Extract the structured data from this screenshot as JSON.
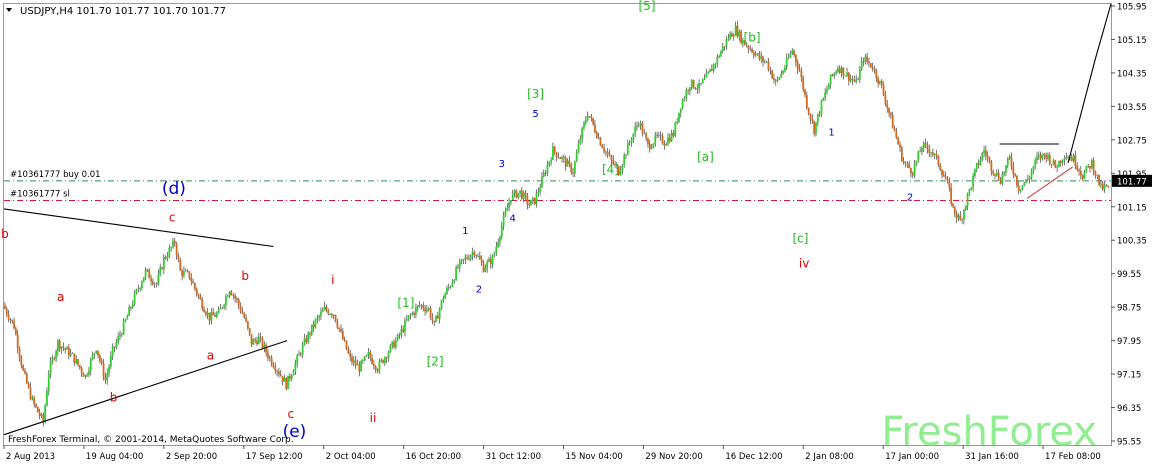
{
  "chart_data": {
    "type": "candlestick",
    "title": "USDJPY,H4  101.70 101.77 101.70 101.77",
    "symbol": "USDJPY",
    "timeframe": "H4",
    "ohlc": [
      101.7,
      101.77,
      101.7,
      101.77
    ],
    "current_price": "101.77",
    "ylim": [
      95.55,
      105.95
    ],
    "y_ticks": [
      "105.95",
      "105.15",
      "104.35",
      "103.55",
      "102.75",
      "101.95",
      "101.15",
      "100.35",
      "99.55",
      "98.75",
      "97.95",
      "97.15",
      "96.35",
      "95.55"
    ],
    "x_ticks": [
      "2 Aug 2013",
      "19 Aug 04:00",
      "2 Sep 20:00",
      "17 Sep 12:00",
      "2 Oct 04:00",
      "16 Oct 20:00",
      "31 Oct 12:00",
      "15 Nov 04:00",
      "29 Nov 20:00",
      "16 Dec 12:00",
      "2 Jan 08:00",
      "17 Jan 00:00",
      "31 Jan 16:00",
      "17 Feb 08:00"
    ],
    "grid": false,
    "colors": {
      "bull": "#32cd32",
      "bear": "#d2691e",
      "wick": "#1f1f1f",
      "up_close": "#00aa00",
      "axis": "#9a9a9a"
    },
    "price_path": [
      [
        0,
        98.8
      ],
      [
        1.2,
        98.3
      ],
      [
        2.2,
        97.2
      ],
      [
        3.2,
        96.5
      ],
      [
        4.4,
        96.0
      ],
      [
        5.0,
        97.2
      ],
      [
        6.0,
        97.9
      ],
      [
        7.5,
        97.6
      ],
      [
        9.0,
        97.1
      ],
      [
        10.2,
        97.8
      ],
      [
        11.2,
        97.0
      ],
      [
        12.0,
        97.7
      ],
      [
        13.2,
        98.3
      ],
      [
        14.4,
        99.0
      ],
      [
        15.6,
        99.6
      ],
      [
        16.8,
        99.3
      ],
      [
        17.6,
        99.9
      ],
      [
        18.8,
        100.3
      ],
      [
        19.4,
        99.6
      ],
      [
        20.4,
        99.5
      ],
      [
        21.6,
        98.9
      ],
      [
        22.6,
        98.5
      ],
      [
        23.6,
        98.6
      ],
      [
        24.8,
        99.2
      ],
      [
        25.6,
        98.9
      ],
      [
        26.4,
        98.5
      ],
      [
        27.2,
        97.9
      ],
      [
        28.0,
        98.0
      ],
      [
        29.0,
        97.6
      ],
      [
        30.2,
        97.2
      ],
      [
        31.0,
        96.9
      ],
      [
        32.0,
        97.4
      ],
      [
        33.0,
        97.9
      ],
      [
        34.2,
        98.4
      ],
      [
        35.2,
        98.7
      ],
      [
        36.2,
        98.6
      ],
      [
        37.0,
        98.1
      ],
      [
        38.0,
        97.5
      ],
      [
        39.0,
        97.3
      ],
      [
        40.0,
        97.6
      ],
      [
        41.0,
        97.3
      ],
      [
        42.2,
        97.7
      ],
      [
        43.2,
        98.0
      ],
      [
        44.4,
        98.5
      ],
      [
        45.6,
        98.8
      ],
      [
        46.6,
        98.7
      ],
      [
        47.2,
        98.3
      ],
      [
        48.2,
        99.0
      ],
      [
        49.0,
        99.3
      ],
      [
        49.8,
        99.7
      ],
      [
        50.6,
        99.9
      ],
      [
        51.6,
        100.1
      ],
      [
        52.6,
        99.7
      ],
      [
        53.6,
        99.9
      ],
      [
        54.6,
        100.7
      ],
      [
        55.6,
        101.4
      ],
      [
        56.6,
        101.5
      ],
      [
        57.6,
        101.2
      ],
      [
        58.2,
        101.3
      ],
      [
        59.2,
        101.9
      ],
      [
        60.2,
        102.5
      ],
      [
        61.2,
        102.3
      ],
      [
        62.4,
        102.0
      ],
      [
        63.2,
        102.8
      ],
      [
        64.0,
        103.4
      ],
      [
        65.4,
        102.7
      ],
      [
        66.4,
        102.3
      ],
      [
        67.4,
        102.0
      ],
      [
        68.6,
        102.7
      ],
      [
        69.6,
        103.2
      ],
      [
        70.6,
        102.6
      ],
      [
        71.6,
        102.8
      ],
      [
        72.4,
        102.7
      ],
      [
        73.4,
        102.9
      ],
      [
        74.2,
        103.6
      ],
      [
        75.2,
        104.1
      ],
      [
        76.2,
        104.0
      ],
      [
        77.2,
        104.3
      ],
      [
        78.2,
        104.7
      ],
      [
        79.4,
        105.2
      ],
      [
        80.2,
        105.4
      ],
      [
        81.0,
        105.1
      ],
      [
        82.0,
        104.9
      ],
      [
        82.8,
        104.7
      ],
      [
        83.6,
        104.6
      ],
      [
        84.6,
        104.1
      ],
      [
        85.6,
        104.5
      ],
      [
        86.4,
        104.9
      ],
      [
        87.2,
        104.4
      ],
      [
        88.0,
        103.6
      ],
      [
        88.8,
        103.0
      ],
      [
        89.6,
        103.6
      ],
      [
        90.6,
        104.2
      ],
      [
        91.4,
        104.5
      ],
      [
        92.4,
        104.3
      ],
      [
        93.4,
        104.1
      ],
      [
        94.2,
        104.7
      ],
      [
        95.2,
        104.5
      ],
      [
        96.2,
        104.0
      ],
      [
        97.0,
        103.4
      ],
      [
        97.8,
        102.8
      ],
      [
        98.6,
        102.2
      ],
      [
        99.6,
        102.0
      ],
      [
        100.6,
        102.6
      ],
      [
        101.6,
        102.5
      ],
      [
        102.4,
        102.2
      ],
      [
        103.4,
        101.7
      ],
      [
        104.0,
        101.1
      ],
      [
        104.8,
        100.8
      ],
      [
        105.6,
        101.4
      ],
      [
        106.6,
        102.1
      ],
      [
        107.4,
        102.5
      ],
      [
        108.2,
        102.1
      ],
      [
        109.2,
        101.8
      ],
      [
        110.2,
        102.3
      ],
      [
        111.2,
        101.6
      ],
      [
        112.2,
        101.8
      ],
      [
        113.2,
        102.3
      ],
      [
        114.2,
        102.4
      ],
      [
        115.2,
        102.1
      ],
      [
        116.2,
        102.4
      ],
      [
        117.2,
        102.3
      ],
      [
        118.2,
        101.9
      ],
      [
        119.2,
        102.2
      ],
      [
        120.2,
        101.6
      ],
      [
        121.0,
        101.6
      ]
    ],
    "horizontal_lines": [
      {
        "label": "#10361777 buy 0.01",
        "value": 101.77,
        "color": "#2e8b57"
      },
      {
        "label": "#10361777 sl",
        "value": 101.3,
        "color": "#dc143c"
      }
    ],
    "trendlines": [
      {
        "points": [
          [
            0,
            101.1
          ],
          [
            29.5,
            100.2
          ]
        ],
        "color": "#000000"
      },
      {
        "points": [
          [
            0,
            95.7
          ],
          [
            31.0,
            97.95
          ]
        ],
        "color": "#000000"
      },
      {
        "points": [
          [
            109.0,
            102.65
          ],
          [
            115.5,
            102.65
          ]
        ],
        "color": "#000000"
      },
      {
        "points": [
          [
            112.0,
            101.35
          ],
          [
            117.0,
            102.1
          ]
        ],
        "color": "#c84a4a"
      },
      {
        "points": [
          [
            116.5,
            102.2
          ],
          [
            119.5,
            104.7
          ],
          [
            121.2,
            106.0
          ]
        ],
        "color": "#000000"
      }
    ],
    "annotations": [
      {
        "text": "b",
        "x": 0.1,
        "y": 100.4,
        "color": "#e00000"
      },
      {
        "text": "a",
        "x": 6.2,
        "y": 98.9,
        "color": "#e00000"
      },
      {
        "text": "b",
        "x": 12.0,
        "y": 96.5,
        "color": "#e00000"
      },
      {
        "text": "c",
        "x": 18.4,
        "y": 100.8,
        "color": "#e00000"
      },
      {
        "text": "a",
        "x": 22.6,
        "y": 97.5,
        "color": "#e00000"
      },
      {
        "text": "b",
        "x": 26.4,
        "y": 99.4,
        "color": "#e00000"
      },
      {
        "text": "c",
        "x": 31.4,
        "y": 96.1,
        "color": "#e00000"
      },
      {
        "text": "i",
        "x": 36.0,
        "y": 99.3,
        "color": "#e00000"
      },
      {
        "text": "ii",
        "x": 40.4,
        "y": 96.0,
        "color": "#e00000"
      },
      {
        "text": "iv",
        "x": 87.6,
        "y": 99.7,
        "color": "#e00000"
      },
      {
        "text": "(d)",
        "x": 18.6,
        "y": 101.45,
        "color": "#0000cc"
      },
      {
        "text": "(e)",
        "x": 31.8,
        "y": 95.65,
        "color": "#0000cc"
      },
      {
        "text": "1",
        "x": 50.5,
        "y": 100.5,
        "color": "#0000cc"
      },
      {
        "text": "2",
        "x": 52.0,
        "y": 99.1,
        "color": "#0000cc"
      },
      {
        "text": "3",
        "x": 54.5,
        "y": 102.1,
        "color": "#0000cc"
      },
      {
        "text": "4",
        "x": 55.7,
        "y": 100.8,
        "color": "#0000cc"
      },
      {
        "text": "5",
        "x": 58.2,
        "y": 103.3,
        "color": "#0000cc"
      },
      {
        "text": "1",
        "x": 90.6,
        "y": 102.85,
        "color": "#0000cc"
      },
      {
        "text": "2",
        "x": 99.2,
        "y": 101.3,
        "color": "#0000cc"
      },
      {
        "text": "[1]",
        "x": 44.0,
        "y": 98.75,
        "color": "#22bb22"
      },
      {
        "text": "[2]",
        "x": 47.2,
        "y": 97.35,
        "color": "#22bb22"
      },
      {
        "text": "[3]",
        "x": 58.2,
        "y": 103.75,
        "color": "#22bb22"
      },
      {
        "text": "[4]",
        "x": 66.4,
        "y": 101.95,
        "color": "#22bb22"
      },
      {
        "text": "[5]",
        "x": 70.4,
        "y": 105.85,
        "color": "#22bb22"
      },
      {
        "text": "[a]",
        "x": 76.8,
        "y": 102.25,
        "color": "#22bb22"
      },
      {
        "text": "[b]",
        "x": 81.9,
        "y": 105.1,
        "color": "#22bb22"
      },
      {
        "text": "[c]",
        "x": 87.2,
        "y": 100.3,
        "color": "#22bb22"
      }
    ]
  },
  "footer": {
    "copyright": "FreshForex Terminal, © 2001-2014, MetaQuotes Software Corp."
  },
  "watermark": {
    "text": "FreshForex"
  }
}
